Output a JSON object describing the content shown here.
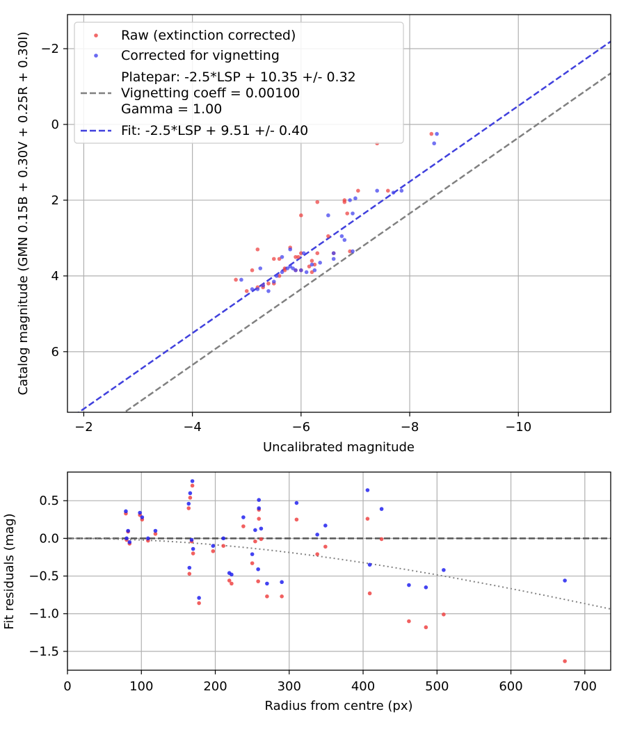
{
  "chart_data": [
    {
      "type": "scatter",
      "xlabel": "Uncalibrated magnitude",
      "ylabel": "Catalog magnitude (GMN 0.15B + 0.30V + 0.25R + 0.30I)",
      "xlim": [
        -1.7,
        -11.7
      ],
      "ylim": [
        7.6,
        -2.9
      ],
      "x_ticks": [
        -2,
        -4,
        -6,
        -8,
        -10
      ],
      "y_ticks": [
        -2,
        0,
        2,
        4,
        6
      ],
      "grid": true,
      "legend_position": "top-left",
      "legend": {
        "raw_label": "Raw (extinction corrected)",
        "corrected_label": "Corrected for vignetting",
        "platepar_lines": [
          "Platepar: -2.5*LSP + 10.35 +/- 0.32",
          "Vignetting coeff = 0.00100",
          "Gamma = 1.00"
        ],
        "fit_label": "Fit: -2.5*LSP + 9.51 +/- 0.40"
      },
      "lines": [
        {
          "name": "Platepar",
          "intercept": 10.35,
          "slope": 1,
          "color": "#808080",
          "style": "dashed"
        },
        {
          "name": "Fit",
          "intercept": 9.51,
          "slope": 1,
          "color": "#4040dd",
          "style": "dashed"
        }
      ],
      "series": [
        {
          "name": "Raw (extinction corrected)",
          "color": "#ee4444",
          "points": [
            [
              -4.8,
              4.1
            ],
            [
              -5.0,
              4.4
            ],
            [
              -5.1,
              3.85
            ],
            [
              -5.2,
              3.3
            ],
            [
              -5.2,
              4.3
            ],
            [
              -5.3,
              4.3
            ],
            [
              -5.5,
              3.55
            ],
            [
              -5.6,
              3.55
            ],
            [
              -5.7,
              3.85
            ],
            [
              -5.8,
              3.25
            ],
            [
              -5.9,
              3.5
            ],
            [
              -5.95,
              3.5
            ],
            [
              -6.0,
              3.4
            ],
            [
              -6.0,
              2.4
            ],
            [
              -6.2,
              3.6
            ],
            [
              -6.2,
              3.9
            ],
            [
              -6.25,
              3.7
            ],
            [
              -6.3,
              2.05
            ],
            [
              -6.3,
              3.4
            ],
            [
              -6.5,
              2.95
            ],
            [
              -6.6,
              3.4
            ],
            [
              -6.8,
              2.05
            ],
            [
              -6.8,
              2.0
            ],
            [
              -6.85,
              2.35
            ],
            [
              -6.9,
              3.35
            ],
            [
              -7.05,
              1.75
            ],
            [
              -7.4,
              0.5
            ],
            [
              -7.6,
              1.75
            ],
            [
              -8.4,
              0.25
            ],
            [
              -5.3,
              4.25
            ],
            [
              -5.4,
              4.2
            ],
            [
              -5.6,
              4.0
            ],
            [
              -5.5,
              4.2
            ],
            [
              -5.9,
              3.85
            ],
            [
              -6.0,
              3.85
            ],
            [
              -5.7,
              3.8
            ],
            [
              -6.15,
              3.75
            ]
          ]
        },
        {
          "name": "Corrected for vignetting",
          "color": "#4444ee",
          "points": [
            [
              -4.9,
              4.1
            ],
            [
              -5.1,
              4.35
            ],
            [
              -5.25,
              3.8
            ],
            [
              -5.3,
              4.25
            ],
            [
              -5.4,
              4.4
            ],
            [
              -5.55,
              4.0
            ],
            [
              -5.65,
              3.5
            ],
            [
              -5.75,
              3.8
            ],
            [
              -5.8,
              3.3
            ],
            [
              -5.85,
              3.8
            ],
            [
              -5.9,
              3.85
            ],
            [
              -6.0,
              3.85
            ],
            [
              -6.05,
              3.4
            ],
            [
              -6.2,
              3.7
            ],
            [
              -6.25,
              3.85
            ],
            [
              -6.35,
              3.65
            ],
            [
              -6.5,
              2.4
            ],
            [
              -6.6,
              3.4
            ],
            [
              -6.6,
              3.55
            ],
            [
              -6.75,
              2.95
            ],
            [
              -6.8,
              3.05
            ],
            [
              -6.9,
              2.0
            ],
            [
              -6.95,
              2.35
            ],
            [
              -6.95,
              3.35
            ],
            [
              -7.0,
              1.95
            ],
            [
              -7.4,
              1.75
            ],
            [
              -7.7,
              1.8
            ],
            [
              -7.85,
              1.75
            ],
            [
              -8.45,
              0.5
            ],
            [
              -8.5,
              0.25
            ],
            [
              -5.2,
              4.35
            ],
            [
              -5.5,
              4.15
            ],
            [
              -5.65,
              3.9
            ],
            [
              -5.8,
              3.75
            ],
            [
              -6.1,
              3.9
            ]
          ]
        }
      ]
    },
    {
      "type": "scatter",
      "xlabel": "Radius from centre (px)",
      "ylabel": "Fit residuals (mag)",
      "xlim": [
        0,
        735
      ],
      "ylim": [
        -1.75,
        0.88
      ],
      "x_ticks": [
        0,
        100,
        200,
        300,
        400,
        500,
        600,
        700
      ],
      "y_ticks": [
        0.5,
        0.0,
        -0.5,
        -1.0,
        -1.5
      ],
      "y_tick_labels": [
        "0.5",
        "0.0",
        "−0.5",
        "−1.0",
        "−1.5"
      ],
      "grid": true,
      "lines": [
        {
          "name": "zero",
          "style": "dashed",
          "color": "#555555"
        },
        {
          "name": "vignetting model",
          "style": "dotted",
          "color": "#808080",
          "coefficient": 0.001
        }
      ],
      "series": [
        {
          "name": "Raw (extinction corrected)",
          "color": "#ee4444",
          "points": [
            [
              79,
              0.33
            ],
            [
              80,
              -0.02
            ],
            [
              82,
              0.09
            ],
            [
              84,
              -0.07
            ],
            [
              98,
              0.31
            ],
            [
              101,
              0.25
            ],
            [
              109,
              -0.03
            ],
            [
              119,
              0.06
            ],
            [
              164,
              0.4
            ],
            [
              165,
              -0.47
            ],
            [
              166,
              0.54
            ],
            [
              168,
              -0.04
            ],
            [
              169,
              0.7
            ],
            [
              170,
              -0.2
            ],
            [
              178,
              -0.86
            ],
            [
              197,
              -0.17
            ],
            [
              211,
              -0.1
            ],
            [
              219,
              -0.56
            ],
            [
              222,
              -0.6
            ],
            [
              238,
              0.16
            ],
            [
              250,
              -0.33
            ],
            [
              254,
              -0.04
            ],
            [
              258,
              -0.57
            ],
            [
              259,
              0.26
            ],
            [
              259,
              0.38
            ],
            [
              262,
              -0.01
            ],
            [
              270,
              -0.77
            ],
            [
              290,
              -0.77
            ],
            [
              310,
              0.25
            ],
            [
              338,
              -0.21
            ],
            [
              349,
              -0.11
            ],
            [
              406,
              0.26
            ],
            [
              409,
              -0.73
            ],
            [
              425,
              -0.01
            ],
            [
              462,
              -1.1
            ],
            [
              485,
              -1.18
            ],
            [
              509,
              -1.01
            ],
            [
              673,
              -1.63
            ]
          ]
        },
        {
          "name": "Corrected for vignetting",
          "color": "#2222ee",
          "points": [
            [
              79,
              0.36
            ],
            [
              80,
              0.0
            ],
            [
              82,
              0.1
            ],
            [
              84,
              -0.05
            ],
            [
              98,
              0.34
            ],
            [
              101,
              0.28
            ],
            [
              109,
              0.0
            ],
            [
              119,
              0.1
            ],
            [
              164,
              0.46
            ],
            [
              165,
              -0.39
            ],
            [
              166,
              0.6
            ],
            [
              168,
              -0.02
            ],
            [
              169,
              0.76
            ],
            [
              170,
              -0.14
            ],
            [
              178,
              -0.79
            ],
            [
              197,
              -0.1
            ],
            [
              211,
              0.0
            ],
            [
              219,
              -0.46
            ],
            [
              222,
              -0.48
            ],
            [
              238,
              0.28
            ],
            [
              250,
              -0.21
            ],
            [
              254,
              0.11
            ],
            [
              258,
              -0.41
            ],
            [
              259,
              0.4
            ],
            [
              259,
              0.51
            ],
            [
              262,
              0.13
            ],
            [
              270,
              -0.6
            ],
            [
              290,
              -0.58
            ],
            [
              310,
              0.47
            ],
            [
              338,
              0.05
            ],
            [
              349,
              0.17
            ],
            [
              406,
              0.64
            ],
            [
              409,
              -0.35
            ],
            [
              425,
              0.39
            ],
            [
              462,
              -0.62
            ],
            [
              485,
              -0.65
            ],
            [
              509,
              -0.42
            ],
            [
              673,
              -0.56
            ]
          ]
        }
      ]
    }
  ]
}
